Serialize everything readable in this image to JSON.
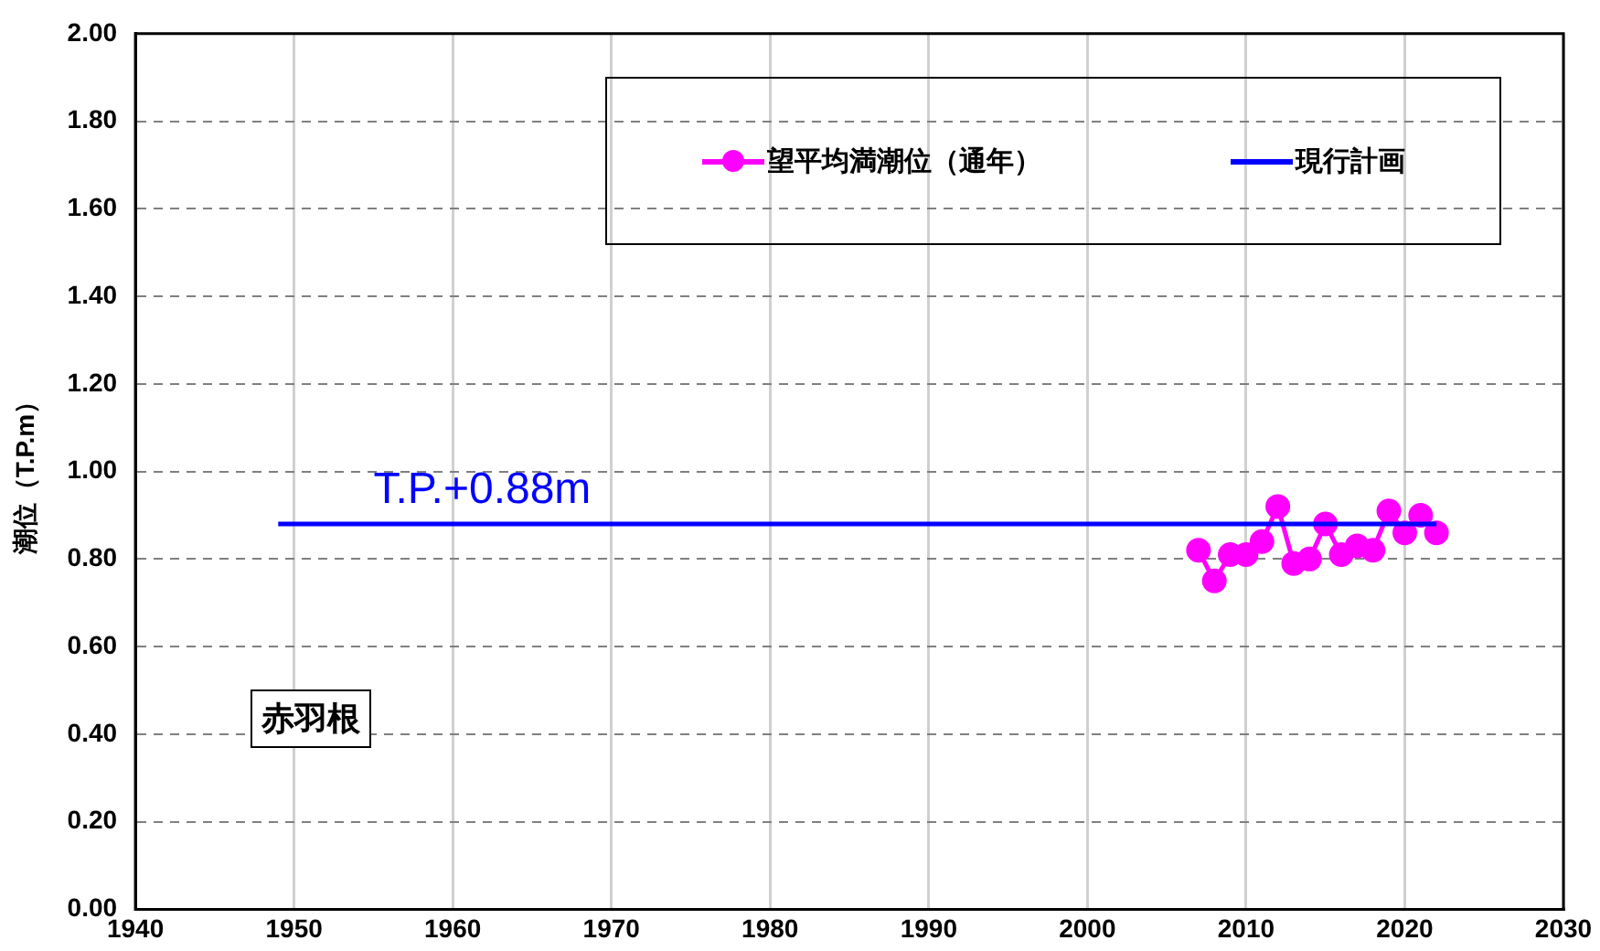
{
  "chart_data": {
    "type": "line",
    "ylabel": "潮位（T.P.m）",
    "xlim": [
      1940,
      2030
    ],
    "xticks": [
      1940,
      1950,
      1960,
      1970,
      1980,
      1990,
      2000,
      2010,
      2020,
      2030
    ],
    "ylim": [
      0,
      2
    ],
    "yticks": [
      {
        "value": 0,
        "label": "0.00"
      },
      {
        "value": 0.2,
        "label": "0.20"
      },
      {
        "value": 0.4,
        "label": "0.40"
      },
      {
        "value": 0.6,
        "label": "0.60"
      },
      {
        "value": 0.8,
        "label": "0.80"
      },
      {
        "value": 1,
        "label": "1.00"
      },
      {
        "value": 1.2,
        "label": "1.20"
      },
      {
        "value": 1.4,
        "label": "1.40"
      },
      {
        "value": 1.6,
        "label": "1.60"
      },
      {
        "value": 1.8,
        "label": "1.80"
      },
      {
        "value": 2,
        "label": "2.00"
      }
    ],
    "grid": true,
    "legend": "top right",
    "series": [
      {
        "name": "望平均満潮位（通年）",
        "color": "#ff00ff",
        "marker": "circle",
        "x": [
          2007,
          2008,
          2009,
          2010,
          2011,
          2012,
          2013,
          2014,
          2015,
          2016,
          2017,
          2018,
          2019,
          2020,
          2021,
          2022
        ],
        "values": [
          0.82,
          0.75,
          0.81,
          0.81,
          0.84,
          0.92,
          0.79,
          0.8,
          0.88,
          0.81,
          0.83,
          0.82,
          0.91,
          0.86,
          0.9,
          0.86
        ]
      },
      {
        "name": "現行計画",
        "color": "#0000ff",
        "marker": "none",
        "x": [
          1949,
          2022
        ],
        "values": [
          0.88,
          0.88
        ]
      }
    ],
    "annotations": [
      {
        "text": "T.P.+0.88m",
        "x": 1955,
        "y": 0.88
      },
      "赤羽根"
    ]
  }
}
